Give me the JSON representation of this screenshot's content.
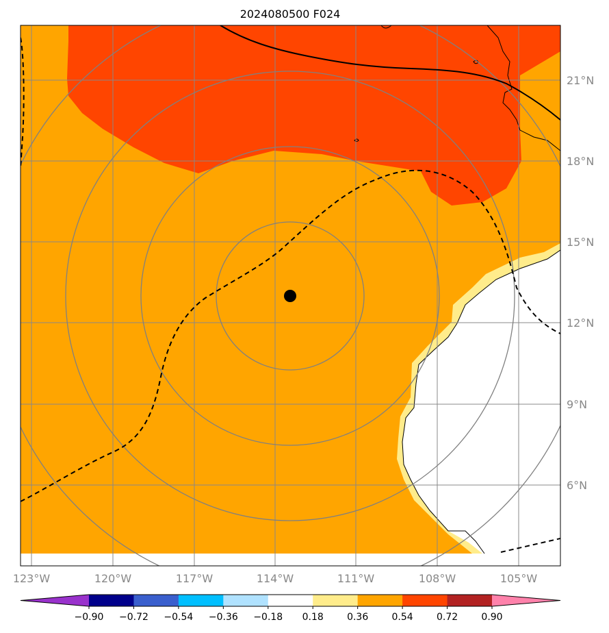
{
  "title": "2024080500 F024",
  "chart_data": {
    "type": "map",
    "title": "2024080500 F024",
    "longitude_labels": [
      "123°W",
      "120°W",
      "117°W",
      "114°W",
      "111°W",
      "108°W",
      "105°W"
    ],
    "latitude_labels": [
      "21°N",
      "18°N",
      "15°N",
      "12°N",
      "9°N",
      "6°N"
    ],
    "storm_center": {
      "lon": -113.5,
      "lat": 13.0
    },
    "range_rings": 4,
    "colorbar": {
      "tick_labels": [
        "−0.90",
        "−0.72",
        "−0.54",
        "−0.36",
        "−0.18",
        "0.18",
        "0.36",
        "0.54",
        "0.72",
        "0.90"
      ],
      "bin_colors": [
        "#9932CC",
        "#00008B",
        "#3A5FCD",
        "#00BFFF",
        "#B0E2FF",
        "#FFFFFF",
        "#FFEC8B",
        "#FFA500",
        "#FF4500",
        "#B22222",
        "#FF82AB"
      ],
      "extend": "both"
    },
    "colors": {
      "ocean_fill": "#FFA500",
      "high_fill": "#FF4500",
      "coast_fill": "#FFEC8B",
      "land": "#FFFFFF",
      "grid": "#888888"
    }
  }
}
